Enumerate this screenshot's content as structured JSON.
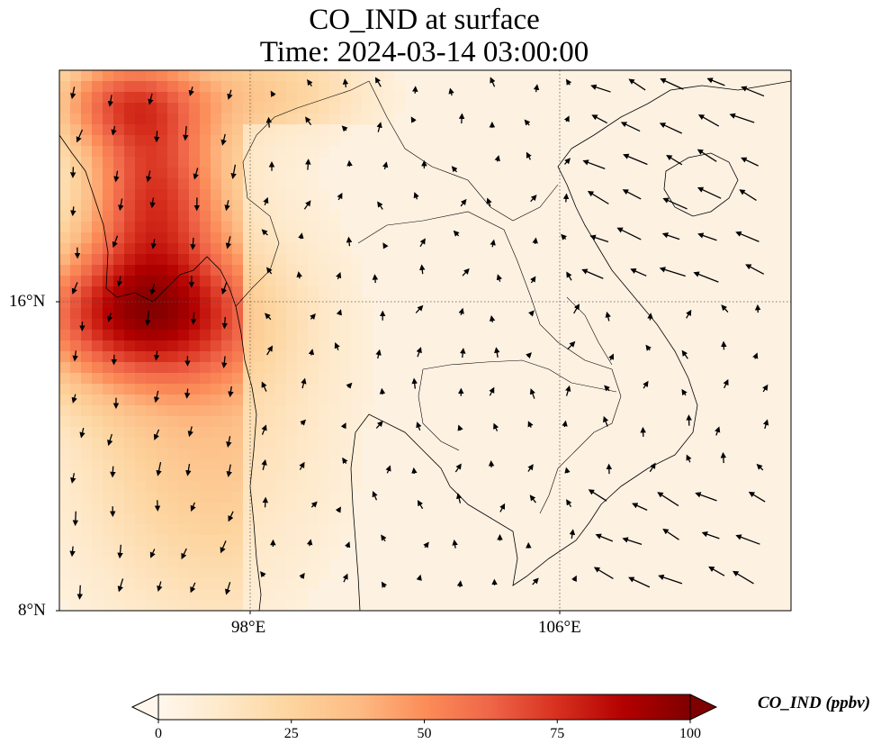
{
  "title": {
    "line1": "CO_IND at surface",
    "line2": "Time: 2024-03-14 03:00:00"
  },
  "axes": {
    "lat_ticks": [
      "16°N",
      "8°N"
    ],
    "lon_ticks": [
      "98°E",
      "106°E"
    ]
  },
  "colorbar": {
    "label": "CO_IND (ppbv)",
    "tick_labels": [
      "0",
      "25",
      "50",
      "75",
      "100"
    ],
    "colormap": "OrRd",
    "extend": "both",
    "range": [
      0,
      100
    ]
  },
  "chart_data": {
    "type": "heatmap",
    "title": "CO_IND at surface\nTime: 2024-03-14 03:00:00",
    "variable": "CO_IND",
    "units": "ppbv",
    "xlabel": "",
    "ylabel": "",
    "lon_range": [
      93,
      112
    ],
    "lat_range": [
      8,
      22
    ],
    "lon_ticks": [
      98,
      106
    ],
    "lat_ticks": [
      8,
      16
    ],
    "gridlines": "dotted",
    "color_range": [
      0,
      100
    ],
    "overlays": [
      "coastlines",
      "country borders",
      "wind vectors"
    ]
  }
}
